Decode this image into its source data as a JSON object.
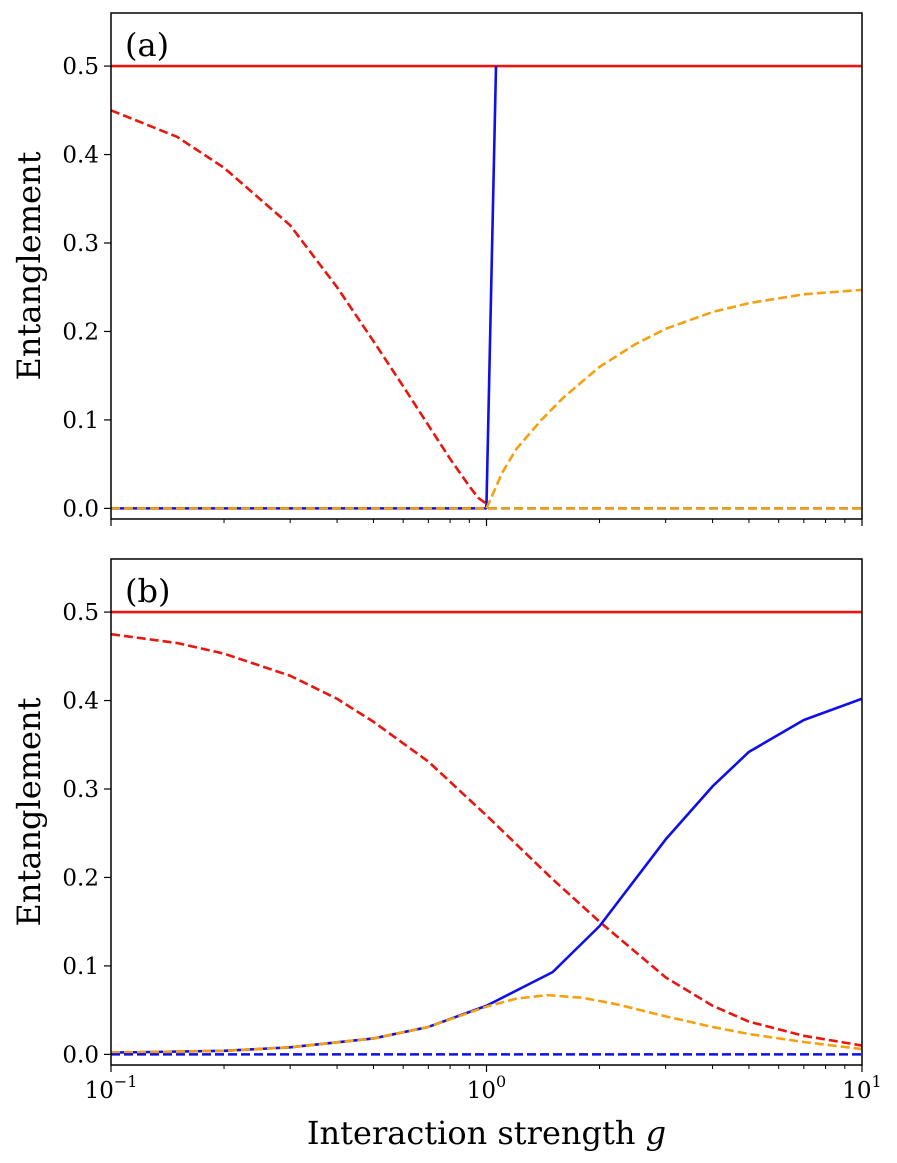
{
  "chart_data": [
    {
      "type": "line",
      "panel_label": "(a)",
      "xscale": "log",
      "xlim": [
        0.1,
        10
      ],
      "ylim": [
        -0.012,
        0.56
      ],
      "ylabel": "Entanglement",
      "xlabel": "",
      "x_ticks": [
        {
          "value": 0.1,
          "base": "10",
          "exp": "−1"
        },
        {
          "value": 1,
          "base": "10",
          "exp": "0"
        },
        {
          "value": 10,
          "base": "10",
          "exp": "1"
        }
      ],
      "x_tick_labels_visible": false,
      "y_ticks": [
        {
          "value": 0.0,
          "label": "0.0"
        },
        {
          "value": 0.1,
          "label": "0.1"
        },
        {
          "value": 0.2,
          "label": "0.2"
        },
        {
          "value": 0.3,
          "label": "0.3"
        },
        {
          "value": 0.4,
          "label": "0.4"
        },
        {
          "value": 0.5,
          "label": "0.5"
        }
      ],
      "series": [
        {
          "name": "red-solid",
          "color": "#e8160f",
          "dash": "solid",
          "x": [
            0.1,
            10
          ],
          "y": [
            0.5,
            0.5
          ]
        },
        {
          "name": "red-dashed",
          "color": "#e8160f",
          "dash": "dashed",
          "x": [
            0.1,
            0.15,
            0.2,
            0.3,
            0.4,
            0.5,
            0.6,
            0.7,
            0.8,
            0.9,
            0.95,
            1.0
          ],
          "y": [
            0.45,
            0.42,
            0.385,
            0.32,
            0.25,
            0.189,
            0.138,
            0.094,
            0.056,
            0.025,
            0.012,
            0.005
          ]
        },
        {
          "name": "blue-solid",
          "color": "#0f0fe8",
          "dash": "solid",
          "x": [
            0.1,
            0.5,
            0.998,
            1.0,
            1.06
          ],
          "y": [
            0.0,
            0.0,
            0.0,
            0.005,
            0.5
          ]
        },
        {
          "name": "orange-dashed",
          "color": "#f5a00f",
          "dash": "dashed",
          "x": [
            1.0,
            1.1,
            1.2,
            1.4,
            1.6,
            2.0,
            2.5,
            3.0,
            4.0,
            5.0,
            7.0,
            10.0
          ],
          "y": [
            0.0,
            0.04,
            0.067,
            0.1,
            0.125,
            0.16,
            0.186,
            0.203,
            0.222,
            0.232,
            0.242,
            0.247
          ]
        },
        {
          "name": "blue-dashed",
          "color": "#0f0fe8",
          "dash": "dashed",
          "x": [
            0.1,
            10
          ],
          "y": [
            0.0,
            0.0
          ]
        },
        {
          "name": "orange-zero-dashed",
          "color": "#f5a00f",
          "dash": "dashed",
          "x": [
            0.1,
            10
          ],
          "y": [
            0.0,
            0.0
          ]
        }
      ]
    },
    {
      "type": "line",
      "panel_label": "(b)",
      "xscale": "log",
      "xlim": [
        0.1,
        10
      ],
      "ylim": [
        -0.012,
        0.56
      ],
      "ylabel": "Entanglement",
      "xlabel": "Interaction strength",
      "xlabel_var": "g",
      "x_ticks": [
        {
          "value": 0.1,
          "base": "10",
          "exp": "−1"
        },
        {
          "value": 1,
          "base": "10",
          "exp": "0"
        },
        {
          "value": 10,
          "base": "10",
          "exp": "1"
        }
      ],
      "x_tick_labels_visible": true,
      "y_ticks": [
        {
          "value": 0.0,
          "label": "0.0"
        },
        {
          "value": 0.1,
          "label": "0.1"
        },
        {
          "value": 0.2,
          "label": "0.2"
        },
        {
          "value": 0.3,
          "label": "0.3"
        },
        {
          "value": 0.4,
          "label": "0.4"
        },
        {
          "value": 0.5,
          "label": "0.5"
        }
      ],
      "series": [
        {
          "name": "red-solid",
          "color": "#e8160f",
          "dash": "solid",
          "x": [
            0.1,
            10
          ],
          "y": [
            0.5,
            0.5
          ]
        },
        {
          "name": "red-dashed",
          "color": "#e8160f",
          "dash": "dashed",
          "x": [
            0.1,
            0.15,
            0.2,
            0.3,
            0.4,
            0.5,
            0.7,
            1.0,
            1.5,
            2.0,
            3.0,
            4.0,
            5.0,
            7.0,
            10.0
          ],
          "y": [
            0.475,
            0.465,
            0.453,
            0.428,
            0.402,
            0.376,
            0.331,
            0.27,
            0.198,
            0.15,
            0.087,
            0.055,
            0.037,
            0.021,
            0.01
          ]
        },
        {
          "name": "blue-solid",
          "color": "#0f0fe8",
          "dash": "solid",
          "x": [
            0.1,
            0.2,
            0.3,
            0.5,
            0.7,
            1.0,
            1.5,
            2.0,
            3.0,
            4.0,
            5.0,
            7.0,
            10.0
          ],
          "y": [
            0.002,
            0.004,
            0.008,
            0.018,
            0.031,
            0.055,
            0.093,
            0.145,
            0.243,
            0.303,
            0.342,
            0.378,
            0.402
          ]
        },
        {
          "name": "orange-dashed",
          "color": "#f5a00f",
          "dash": "dashed",
          "x": [
            0.1,
            0.2,
            0.3,
            0.5,
            0.7,
            1.0,
            1.2,
            1.45,
            1.8,
            2.2,
            3.0,
            4.0,
            5.0,
            7.0,
            10.0
          ],
          "y": [
            0.002,
            0.004,
            0.008,
            0.018,
            0.031,
            0.054,
            0.063,
            0.067,
            0.064,
            0.057,
            0.043,
            0.031,
            0.023,
            0.014,
            0.006
          ]
        },
        {
          "name": "blue-dashed",
          "color": "#0f0fe8",
          "dash": "dashed",
          "x": [
            0.1,
            10
          ],
          "y": [
            0.0,
            0.0
          ]
        }
      ]
    }
  ]
}
